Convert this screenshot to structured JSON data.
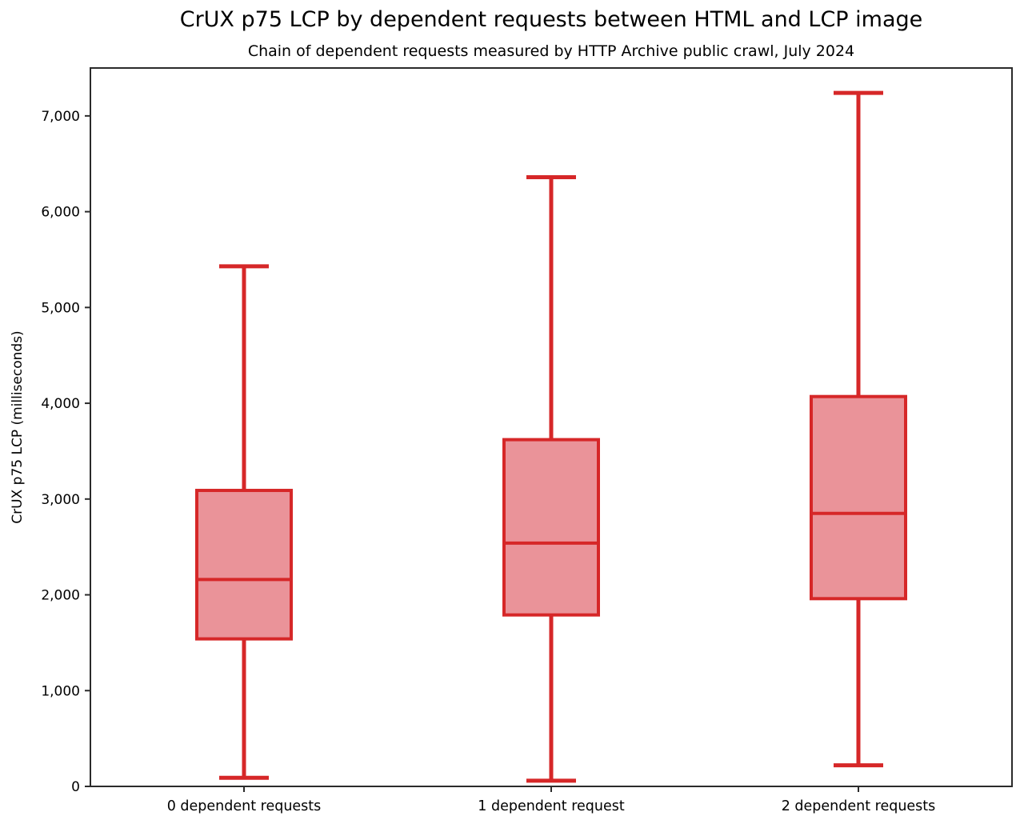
{
  "chart_data": {
    "type": "boxplot",
    "title": "CrUX p75 LCP by dependent requests between HTML and LCP image",
    "subtitle": "Chain of dependent requests measured by HTTP Archive public crawl, July 2024",
    "xlabel": "",
    "ylabel": "CrUX p75 LCP (milliseconds)",
    "categories": [
      "0 dependent requests",
      "1 dependent request",
      "2 dependent requests"
    ],
    "yticks": [
      0,
      1000,
      2000,
      3000,
      4000,
      5000,
      6000,
      7000
    ],
    "ylim": [
      0,
      7500
    ],
    "grid": false,
    "legend": "none",
    "series": [
      {
        "name": "0 dependent requests",
        "whisker_low": 90,
        "q1": 1540,
        "median": 2160,
        "q3": 3090,
        "whisker_high": 5430
      },
      {
        "name": "1 dependent request",
        "whisker_low": 60,
        "q1": 1790,
        "median": 2540,
        "q3": 3620,
        "whisker_high": 6360
      },
      {
        "name": "2 dependent requests",
        "whisker_low": 220,
        "q1": 1960,
        "median": 2850,
        "q3": 4070,
        "whisker_high": 7240
      }
    ],
    "colors": {
      "box_edge": "#d62728",
      "box_fill": "#ea9399",
      "axis": "#2b2b2b",
      "text": "#000000"
    }
  }
}
